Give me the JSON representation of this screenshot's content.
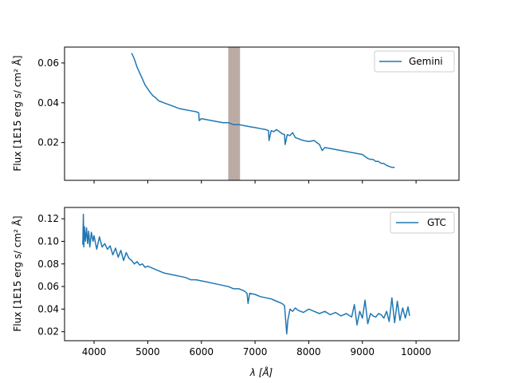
{
  "chart_data": [
    {
      "type": "line",
      "panel": "top",
      "ylabel": "Flux [1E15 erg s/ $cm^2$ $\\AA$]",
      "ylabel_display": "Flux [1E15 erg s/ cm² Å]",
      "xlabel": "",
      "xlim": [
        3450,
        10800
      ],
      "ylim": [
        0.001,
        0.068
      ],
      "xticks": [
        4000,
        5000,
        6000,
        7000,
        8000,
        9000,
        10000
      ],
      "xtick_labels_visible": false,
      "yticks": [
        0.02,
        0.04,
        0.06
      ],
      "ytick_labels": [
        "0.02",
        "0.04",
        "0.06"
      ],
      "legend": {
        "placement": "top-right",
        "entries": [
          "Gemini"
        ]
      },
      "shaded_region": {
        "x": [
          6500,
          6720
        ],
        "color": "#bcaba4"
      },
      "series": [
        {
          "name": "Gemini",
          "color": "#1f77b4",
          "x": [
            4700,
            4750,
            4800,
            4850,
            4900,
            4950,
            5000,
            5050,
            5100,
            5150,
            5200,
            5250,
            5300,
            5400,
            5500,
            5600,
            5700,
            5800,
            5900,
            5950,
            5960,
            6000,
            6100,
            6200,
            6300,
            6400,
            6500,
            6600,
            6700,
            6800,
            6900,
            7000,
            7100,
            7200,
            7250,
            7260,
            7300,
            7350,
            7400,
            7500,
            7550,
            7560,
            7600,
            7650,
            7700,
            7750,
            7800,
            7850,
            7900,
            8000,
            8100,
            8200,
            8250,
            8300,
            8400,
            8500,
            8600,
            8700,
            8800,
            8900,
            9000,
            9050,
            9100,
            9150,
            9200,
            9250,
            9300,
            9350,
            9400,
            9450,
            9500,
            9550,
            9600
          ],
          "values": [
            0.065,
            0.062,
            0.058,
            0.055,
            0.052,
            0.049,
            0.047,
            0.045,
            0.0435,
            0.0425,
            0.041,
            0.0405,
            0.04,
            0.039,
            0.038,
            0.037,
            0.0365,
            0.036,
            0.0355,
            0.035,
            0.031,
            0.032,
            0.0315,
            0.031,
            0.0305,
            0.03,
            0.03,
            0.029,
            0.029,
            0.0285,
            0.028,
            0.0275,
            0.027,
            0.0265,
            0.026,
            0.021,
            0.026,
            0.0255,
            0.0265,
            0.0245,
            0.024,
            0.019,
            0.024,
            0.0235,
            0.025,
            0.0225,
            0.022,
            0.0215,
            0.021,
            0.0205,
            0.021,
            0.019,
            0.016,
            0.0175,
            0.017,
            0.0165,
            0.016,
            0.0155,
            0.015,
            0.0145,
            0.014,
            0.013,
            0.012,
            0.0115,
            0.0115,
            0.0105,
            0.0105,
            0.0095,
            0.0095,
            0.0085,
            0.008,
            0.0075,
            0.0075
          ]
        }
      ]
    },
    {
      "type": "line",
      "panel": "bottom",
      "ylabel": "Flux [1E15 erg s/ $cm^2$ $\\AA$]",
      "ylabel_display": "Flux [1E15 erg s/ cm² Å]",
      "xlabel": "λ [Å]",
      "xlim": [
        3450,
        10800
      ],
      "ylim": [
        0.012,
        0.13
      ],
      "xticks": [
        4000,
        5000,
        6000,
        7000,
        8000,
        9000,
        10000
      ],
      "xtick_labels": [
        "4000",
        "5000",
        "6000",
        "7000",
        "8000",
        "9000",
        "10000"
      ],
      "yticks": [
        0.02,
        0.04,
        0.06,
        0.08,
        0.1,
        0.12
      ],
      "ytick_labels": [
        "0.02",
        "0.04",
        "0.06",
        "0.08",
        "0.10",
        "0.12"
      ],
      "legend": {
        "placement": "top-right",
        "entries": [
          "GTC"
        ]
      },
      "series": [
        {
          "name": "GTC",
          "color": "#1f77b4",
          "x": [
            3790,
            3800,
            3810,
            3820,
            3840,
            3860,
            3880,
            3900,
            3920,
            3950,
            3980,
            4000,
            4050,
            4100,
            4150,
            4200,
            4250,
            4300,
            4350,
            4400,
            4450,
            4500,
            4550,
            4600,
            4650,
            4700,
            4750,
            4800,
            4850,
            4900,
            4950,
            5000,
            5100,
            5200,
            5300,
            5400,
            5500,
            5600,
            5700,
            5800,
            5900,
            6000,
            6100,
            6200,
            6300,
            6400,
            6500,
            6600,
            6700,
            6800,
            6850,
            6870,
            6900,
            7000,
            7100,
            7200,
            7300,
            7400,
            7500,
            7550,
            7590,
            7610,
            7650,
            7700,
            7750,
            7800,
            7900,
            8000,
            8100,
            8200,
            8300,
            8400,
            8500,
            8600,
            8700,
            8800,
            8850,
            8900,
            8950,
            9000,
            9050,
            9100,
            9150,
            9200,
            9250,
            9300,
            9350,
            9400,
            9450,
            9500,
            9550,
            9600,
            9650,
            9700,
            9750,
            9800,
            9850,
            9880
          ],
          "values": [
            0.097,
            0.124,
            0.095,
            0.113,
            0.1,
            0.112,
            0.098,
            0.109,
            0.095,
            0.108,
            0.1,
            0.105,
            0.093,
            0.104,
            0.095,
            0.098,
            0.093,
            0.096,
            0.088,
            0.094,
            0.086,
            0.092,
            0.083,
            0.09,
            0.085,
            0.083,
            0.08,
            0.082,
            0.079,
            0.08,
            0.077,
            0.078,
            0.076,
            0.074,
            0.072,
            0.071,
            0.07,
            0.069,
            0.068,
            0.066,
            0.066,
            0.065,
            0.064,
            0.063,
            0.062,
            0.061,
            0.06,
            0.058,
            0.058,
            0.056,
            0.054,
            0.045,
            0.054,
            0.053,
            0.051,
            0.05,
            0.049,
            0.047,
            0.045,
            0.043,
            0.018,
            0.03,
            0.04,
            0.038,
            0.041,
            0.039,
            0.037,
            0.04,
            0.038,
            0.036,
            0.038,
            0.035,
            0.037,
            0.034,
            0.036,
            0.033,
            0.044,
            0.026,
            0.038,
            0.032,
            0.048,
            0.027,
            0.036,
            0.034,
            0.033,
            0.036,
            0.035,
            0.032,
            0.038,
            0.029,
            0.05,
            0.028,
            0.047,
            0.03,
            0.041,
            0.032,
            0.042,
            0.034
          ]
        }
      ]
    }
  ]
}
